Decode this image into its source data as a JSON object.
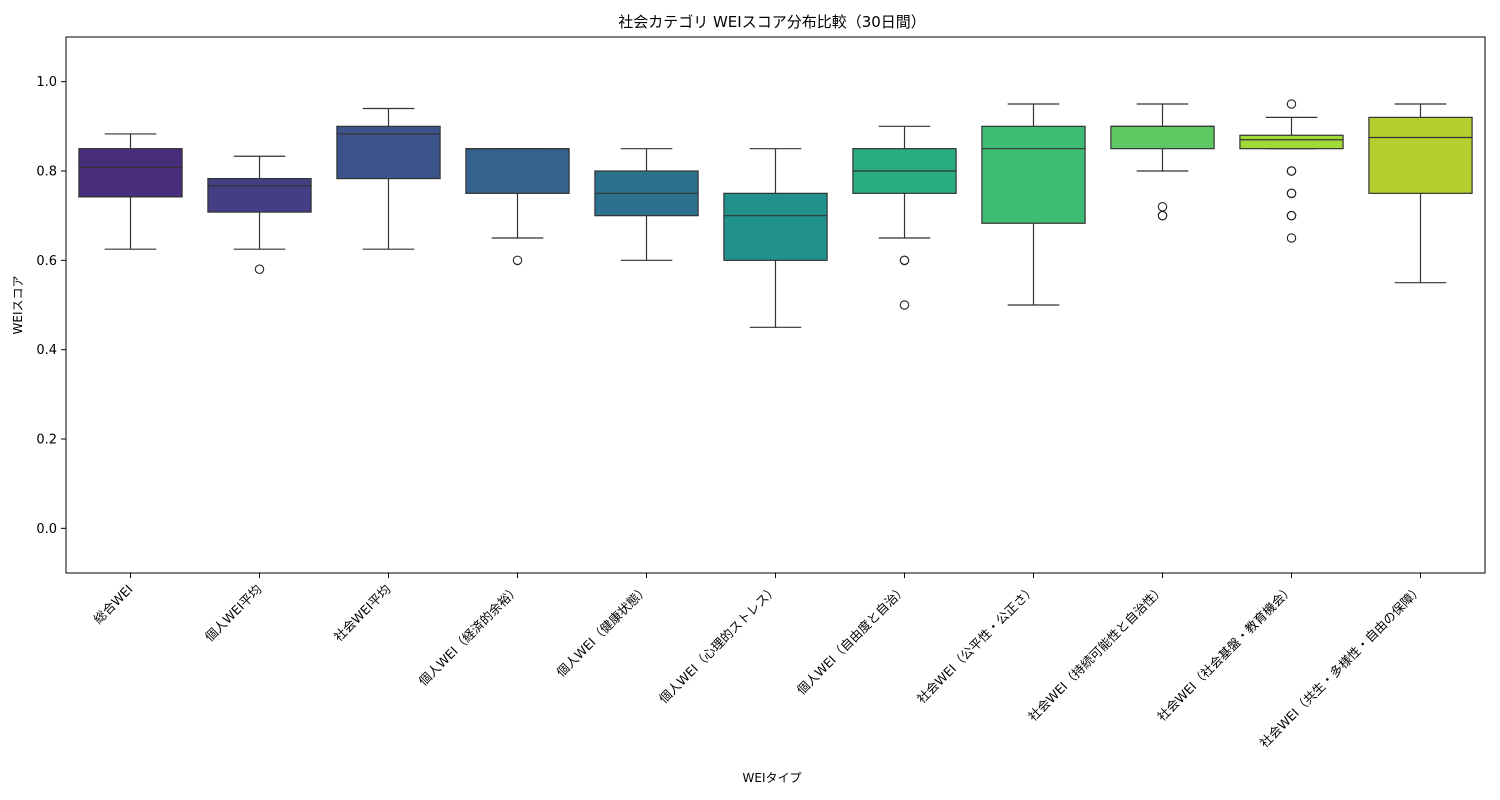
{
  "chart_data": {
    "type": "box",
    "title": "社会カテゴリ WEIスコア分布比較（30日間）",
    "xlabel": "WEIタイプ",
    "ylabel": "WEIスコア",
    "ylim": [
      -0.1,
      1.1
    ],
    "yticks": [
      0.0,
      0.2,
      0.4,
      0.6,
      0.8,
      1.0
    ],
    "ytick_labels": [
      "0.0",
      "0.2",
      "0.4",
      "0.6",
      "0.8",
      "1.0"
    ],
    "grid": false,
    "categories": [
      "総合WEI",
      "個人WEI平均",
      "社会WEI平均",
      "個人WEI（経済的余裕）",
      "個人WEI（健康状態）",
      "個人WEI（心理的ストレス）",
      "個人WEI（自由度と自治）",
      "社会WEI（公平性・公正さ）",
      "社会WEI（持続可能性と自治性）",
      "社会WEI（社会基盤・教育機会）",
      "社会WEI（共生・多様性・自由の保障）"
    ],
    "boxes": [
      {
        "whisker_low": 0.625,
        "q1": 0.742,
        "median": 0.808,
        "q3": 0.85,
        "whisker_high": 0.883,
        "outliers": [],
        "color": "#472d7b"
      },
      {
        "whisker_low": 0.625,
        "q1": 0.708,
        "median": 0.767,
        "q3": 0.783,
        "whisker_high": 0.833,
        "outliers": [
          0.58
        ],
        "color": "#433e85"
      },
      {
        "whisker_low": 0.625,
        "q1": 0.783,
        "median": 0.883,
        "q3": 0.9,
        "whisker_high": 0.94,
        "outliers": [],
        "color": "#3b528b"
      },
      {
        "whisker_low": 0.65,
        "q1": 0.75,
        "median": 0.85,
        "q3": 0.85,
        "whisker_high": 0.85,
        "outliers": [
          0.6
        ],
        "color": "#33638d"
      },
      {
        "whisker_low": 0.6,
        "q1": 0.7,
        "median": 0.75,
        "q3": 0.8,
        "whisker_high": 0.85,
        "outliers": [],
        "color": "#2c728e"
      },
      {
        "whisker_low": 0.45,
        "q1": 0.6,
        "median": 0.7,
        "q3": 0.75,
        "whisker_high": 0.85,
        "outliers": [],
        "color": "#21918c"
      },
      {
        "whisker_low": 0.65,
        "q1": 0.75,
        "median": 0.8,
        "q3": 0.85,
        "whisker_high": 0.9,
        "outliers": [
          0.6,
          0.6,
          0.5
        ],
        "color": "#28ae80"
      },
      {
        "whisker_low": 0.5,
        "q1": 0.683,
        "median": 0.85,
        "q3": 0.9,
        "whisker_high": 0.95,
        "outliers": [],
        "color": "#3fbc73"
      },
      {
        "whisker_low": 0.8,
        "q1": 0.85,
        "median": 0.9,
        "q3": 0.9,
        "whisker_high": 0.95,
        "outliers": [
          0.72,
          0.7,
          0.7
        ],
        "color": "#5ec962"
      },
      {
        "whisker_low": 0.85,
        "q1": 0.85,
        "median": 0.87,
        "q3": 0.88,
        "whisker_high": 0.92,
        "outliers": [
          0.95,
          0.8,
          0.8,
          0.75,
          0.75,
          0.7,
          0.7,
          0.65
        ],
        "color": "#a0da39"
      },
      {
        "whisker_low": 0.55,
        "q1": 0.75,
        "median": 0.875,
        "q3": 0.92,
        "whisker_high": 0.95,
        "outliers": [],
        "color": "#b5cf30"
      }
    ]
  }
}
